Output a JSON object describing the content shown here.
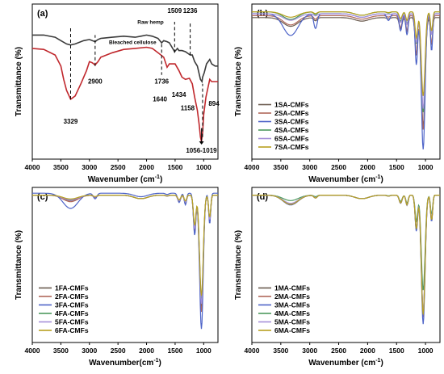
{
  "chart_data": [
    {
      "panel": "(a)",
      "type": "line",
      "xlabel_main": "Wavenumber (cm",
      "xlabel_sup": "-1",
      "xlabel_tail": ")",
      "ylabel": "Transmittance (%)",
      "xlim": [
        4000,
        750
      ],
      "xticks": [
        4000,
        3500,
        3000,
        2500,
        2000,
        1500,
        1000
      ],
      "series": [
        {
          "name": "Raw hemp",
          "color": "#3a3a3a",
          "x": [
            4000,
            3800,
            3600,
            3500,
            3400,
            3329,
            3250,
            3100,
            3000,
            2950,
            2900,
            2850,
            2800,
            2600,
            2400,
            2200,
            2100,
            2000,
            1900,
            1800,
            1736,
            1700,
            1640,
            1600,
            1509,
            1460,
            1434,
            1380,
            1320,
            1236,
            1200,
            1158,
            1110,
            1056,
            1030,
            1019,
            990,
            950,
            894,
            860,
            800,
            750
          ],
          "y": [
            86,
            86,
            85,
            83.5,
            82,
            81.5,
            82,
            83.5,
            84,
            83.5,
            83,
            84,
            84.5,
            85,
            85.5,
            85,
            85.5,
            86,
            85.5,
            84.5,
            82.5,
            83.5,
            83,
            82.5,
            78.5,
            80,
            79,
            79,
            78.5,
            77,
            77,
            74,
            72,
            66,
            65,
            67,
            69,
            73,
            75,
            73,
            72,
            72
          ]
        },
        {
          "name": "Bleached cellulose",
          "color": "#c0282d",
          "x": [
            4000,
            3800,
            3600,
            3500,
            3450,
            3400,
            3329,
            3250,
            3150,
            3050,
            3000,
            2950,
            2900,
            2850,
            2800,
            2600,
            2400,
            2200,
            2000,
            1900,
            1800,
            1700,
            1640,
            1600,
            1500,
            1434,
            1380,
            1320,
            1250,
            1200,
            1158,
            1110,
            1080,
            1056,
            1040,
            1019,
            1000,
            960,
            894,
            860,
            800,
            750
          ],
          "y": [
            80,
            79.5,
            77,
            72,
            66,
            61,
            57,
            58.5,
            64,
            70,
            74,
            73.5,
            72.5,
            74,
            76,
            78,
            79.5,
            80,
            80.5,
            80,
            78,
            76,
            71.5,
            73,
            73,
            70,
            67,
            66,
            66.5,
            64,
            58,
            52,
            46,
            40,
            38,
            42,
            50,
            58,
            66,
            65,
            65,
            65
          ]
        }
      ],
      "annotations": [
        "Raw hemp",
        "Bleached cellulose",
        "1509",
        "1236",
        "1736",
        "2900",
        "1640",
        "1434",
        "1158",
        "894",
        "3329",
        "1056-1019"
      ]
    },
    {
      "panel": "(b)",
      "type": "line",
      "xlabel_main": "Wavenumber (cm",
      "xlabel_sup": "-1",
      "xlabel_tail": ")",
      "ylabel": "Transmittance (%)",
      "xlim": [
        4000,
        750
      ],
      "xticks": [
        4000,
        3500,
        3000,
        2500,
        2000,
        1500,
        1000
      ],
      "legend": "bottom-left",
      "base_x": [
        4000,
        3800,
        3600,
        3500,
        3450,
        3400,
        3329,
        3250,
        3150,
        3050,
        3000,
        2950,
        2900,
        2850,
        2800,
        2600,
        2400,
        2200,
        2000,
        1900,
        1800,
        1736,
        1700,
        1640,
        1600,
        1500,
        1434,
        1380,
        1320,
        1250,
        1200,
        1158,
        1110,
        1080,
        1056,
        1040,
        1019,
        1000,
        960,
        894,
        860,
        800,
        750
      ],
      "series": [
        {
          "name": "1SA-CMFs",
          "color": "#6b5b4f",
          "base": 93,
          "peak": [
            0.16,
            0.09,
            0.06,
            0.35,
            0.65,
            0.8
          ],
          "offset": [
            0,
            0
          ]
        },
        {
          "name": "2SA-CMFs",
          "color": "#b0685a",
          "base": 94,
          "peak": [
            0.17,
            0.1,
            0.07,
            0.38,
            0.67,
            0.84
          ],
          "offset": [
            0,
            0
          ]
        },
        {
          "name": "3SA-CMFs",
          "color": "#4e64c8",
          "base": 95,
          "peak": [
            0.4,
            0.42,
            0.35,
            0.55,
            0.88,
            1.0
          ],
          "offset": [
            0,
            0
          ]
        },
        {
          "name": "4SA-CMFs",
          "color": "#4d9a5e",
          "base": 96,
          "peak": [
            0.14,
            0.08,
            0.07,
            0.3,
            0.55,
            0.74
          ],
          "offset": [
            0,
            0
          ]
        },
        {
          "name": "6SA-CMFs",
          "color": "#a690d8",
          "base": 95,
          "peak": [
            0.12,
            0.06,
            0.05,
            0.28,
            0.5,
            0.7
          ],
          "offset": [
            0,
            0
          ]
        },
        {
          "name": "7SA-CMFs",
          "color": "#b8a020",
          "base": 96,
          "peak": [
            0.1,
            0.05,
            0.04,
            0.22,
            0.45,
            0.62
          ],
          "offset": [
            0,
            0
          ]
        }
      ]
    },
    {
      "panel": "(c)",
      "type": "line",
      "xlabel_main": "Wavenumber(cm",
      "xlabel_sup": "-1",
      "xlabel_tail": ")",
      "ylabel": "Transmittance (%)",
      "xlim": [
        4000,
        750
      ],
      "xticks": [
        4000,
        3500,
        3000,
        2500,
        2000,
        1500,
        1000
      ],
      "legend": "bottom-left",
      "series": [
        {
          "name": "1FA-CMFs",
          "color": "#6b5b4f",
          "base": 96,
          "peak": [
            0.1,
            0.06,
            0.05,
            0.2,
            0.6,
            0.82
          ]
        },
        {
          "name": "2FA-CMFs",
          "color": "#b0685a",
          "base": 96,
          "peak": [
            0.12,
            0.07,
            0.05,
            0.22,
            0.62,
            0.86
          ]
        },
        {
          "name": "3FA-CMFs",
          "color": "#4e64c8",
          "base": 97,
          "peak": [
            0.28,
            0.16,
            0.06,
            0.3,
            0.72,
            1.0
          ]
        },
        {
          "name": "4FA-CMFs",
          "color": "#4d9a5e",
          "base": 96,
          "peak": [
            0.08,
            0.05,
            0.04,
            0.18,
            0.55,
            0.78
          ]
        },
        {
          "name": "5FA-CMFs",
          "color": "#a690d8",
          "base": 96,
          "peak": [
            0.09,
            0.05,
            0.04,
            0.18,
            0.58,
            0.8
          ]
        },
        {
          "name": "6FA-CMFs",
          "color": "#b8a020",
          "base": 96,
          "peak": [
            0.07,
            0.04,
            0.03,
            0.15,
            0.52,
            0.74
          ]
        }
      ]
    },
    {
      "panel": "(d)",
      "type": "line",
      "xlabel_main": "Wavenumber (cm",
      "xlabel_sup": "-1",
      "xlabel_tail": ")",
      "ylabel": "Transmittance (%)",
      "xlim": [
        4000,
        750
      ],
      "xticks": [
        4000,
        3500,
        3000,
        2500,
        2000,
        1500,
        1000
      ],
      "legend": "bottom-left",
      "series": [
        {
          "name": "1MA-CMFs",
          "color": "#6b5b4f",
          "base": 96,
          "peak": [
            0.16,
            0.07,
            0.05,
            0.24,
            0.58,
            0.86
          ]
        },
        {
          "name": "2MA-CMFs",
          "color": "#b0685a",
          "base": 96,
          "peak": [
            0.17,
            0.08,
            0.05,
            0.26,
            0.6,
            0.9
          ]
        },
        {
          "name": "3MA-CMFs",
          "color": "#4e64c8",
          "base": 96,
          "peak": [
            0.18,
            0.08,
            0.05,
            0.26,
            0.62,
            0.95
          ]
        },
        {
          "name": "4MA-CMFs",
          "color": "#4d9a5e",
          "base": 96,
          "peak": [
            0.1,
            0.04,
            0.03,
            0.2,
            0.45,
            0.7
          ]
        },
        {
          "name": "5MA-CMFs",
          "color": "#a690d8",
          "base": 96,
          "peak": [
            0.15,
            0.07,
            0.05,
            0.24,
            0.55,
            0.85
          ]
        },
        {
          "name": "6MA-CMFs",
          "color": "#b8a020",
          "base": 96,
          "peak": [
            0.17,
            0.08,
            0.05,
            0.25,
            0.58,
            0.88
          ]
        }
      ]
    }
  ]
}
